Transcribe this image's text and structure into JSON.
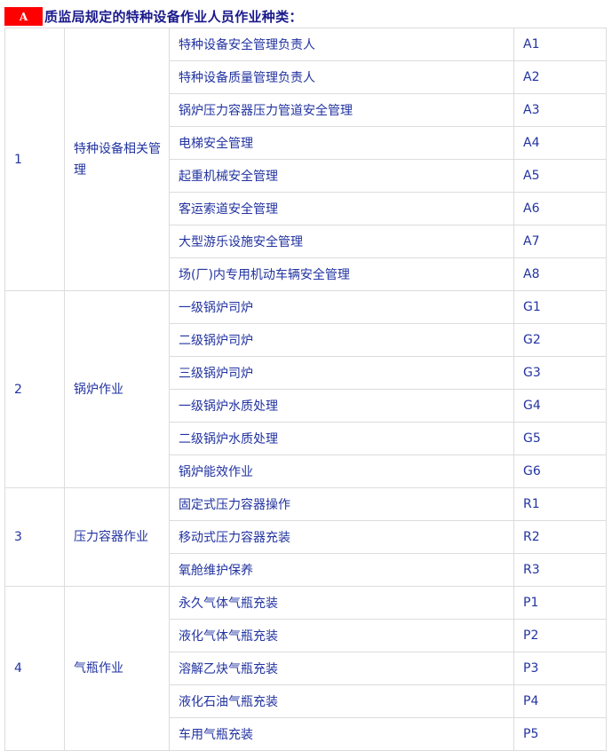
{
  "header": {
    "badge": "A",
    "title": "质监局规定的特种设备作业人员作业种类："
  },
  "colors": {
    "badge": "#ff0000",
    "title": "#1a1a8c",
    "text": "#2233a0",
    "border": "#dcdcdc"
  },
  "groups": [
    {
      "no": "1",
      "category": "特种设备相关管理",
      "items": [
        {
          "name": "特种设备安全管理负责人",
          "code": "A1"
        },
        {
          "name": "特种设备质量管理负责人",
          "code": "A2"
        },
        {
          "name": "锅炉压力容器压力管道安全管理",
          "code": "A3"
        },
        {
          "name": "电梯安全管理",
          "code": "A4"
        },
        {
          "name": "起重机械安全管理",
          "code": "A5"
        },
        {
          "name": "客运索道安全管理",
          "code": "A6"
        },
        {
          "name": "大型游乐设施安全管理",
          "code": "A7"
        },
        {
          "name": "场(厂)内专用机动车辆安全管理",
          "code": "A8"
        }
      ]
    },
    {
      "no": "2",
      "category": "锅炉作业",
      "items": [
        {
          "name": "一级锅炉司炉",
          "code": "G1"
        },
        {
          "name": "二级锅炉司炉",
          "code": "G2"
        },
        {
          "name": "三级锅炉司炉",
          "code": "G3"
        },
        {
          "name": "一级锅炉水质处理",
          "code": "G4"
        },
        {
          "name": "二级锅炉水质处理",
          "code": "G5"
        },
        {
          "name": "锅炉能效作业",
          "code": "G6"
        }
      ]
    },
    {
      "no": "3",
      "category": "压力容器作业",
      "items": [
        {
          "name": "固定式压力容器操作",
          "code": "R1"
        },
        {
          "name": "移动式压力容器充装",
          "code": "R2"
        },
        {
          "name": "氧舱维护保养",
          "code": "R3"
        }
      ]
    },
    {
      "no": "4",
      "category": "气瓶作业",
      "items": [
        {
          "name": "永久气体气瓶充装",
          "code": "P1"
        },
        {
          "name": "液化气体气瓶充装",
          "code": "P2"
        },
        {
          "name": "溶解乙炔气瓶充装",
          "code": "P3"
        },
        {
          "name": "液化石油气瓶充装",
          "code": "P4"
        },
        {
          "name": "车用气瓶充装",
          "code": "P5"
        }
      ]
    }
  ]
}
